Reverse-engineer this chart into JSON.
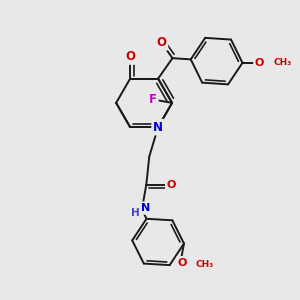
{
  "bg_color": "#e8e8e8",
  "bond_color": "#1a1a1a",
  "bond_width": 1.4,
  "atom_colors": {
    "O": "#cc0000",
    "N": "#0000cc",
    "F": "#cc00cc",
    "H_label": "#4444cc"
  },
  "font_size_atom": 8.5,
  "xlim": [
    0,
    10
  ],
  "ylim": [
    0,
    10
  ]
}
